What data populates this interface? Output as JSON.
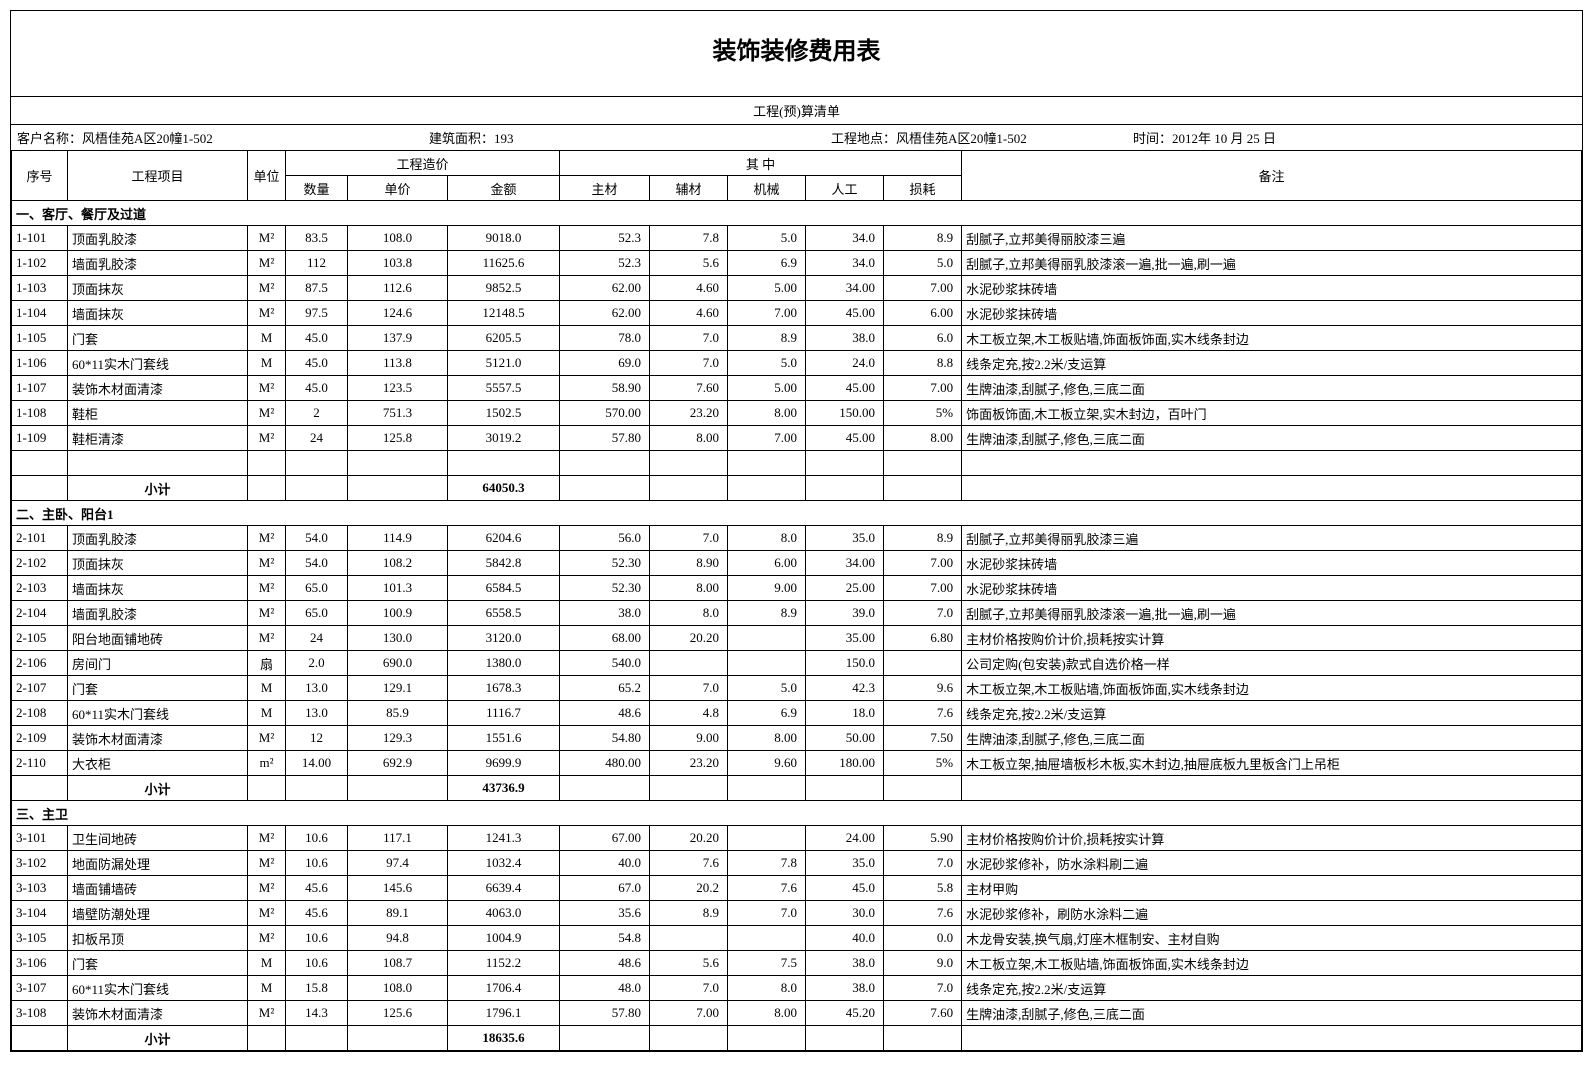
{
  "title": "装饰装修费用表",
  "subtitle": "工程(预)算清单",
  "meta": {
    "customer_label": "客户名称：",
    "customer": "风梧佳苑A区20幢1-502",
    "area_label": "建筑面积：",
    "area": "193",
    "location_label": "工程地点：",
    "location": "风梧佳苑A区20幢1-502",
    "date_label": "时间：",
    "date": "2012年 10 月 25 日"
  },
  "headers": {
    "seq": "序号",
    "item": "工程项目",
    "unit": "单位",
    "cost_group": "工程造价",
    "qty": "数量",
    "price": "单价",
    "amount": "金额",
    "breakdown_group": "其    中",
    "main": "主材",
    "aux": "辅材",
    "mach": "机械",
    "labor": "人工",
    "loss": "损耗",
    "note": "备注"
  },
  "sections": [
    {
      "heading": "一、客厅、餐厅及过道",
      "rows": [
        {
          "seq": "1-101",
          "item": "顶面乳胶漆",
          "unit": "M²",
          "qty": "83.5",
          "price": "108.0",
          "amount": "9018.0",
          "main": "52.3",
          "aux": "7.8",
          "mach": "5.0",
          "labor": "34.0",
          "loss": "8.9",
          "note": "刮腻子,立邦美得丽胶漆三遍"
        },
        {
          "seq": "1-102",
          "item": "墙面乳胶漆",
          "unit": "M²",
          "qty": "112",
          "price": "103.8",
          "amount": "11625.6",
          "main": "52.3",
          "aux": "5.6",
          "mach": "6.9",
          "labor": "34.0",
          "loss": "5.0",
          "note": "刮腻子,立邦美得丽乳胶漆滚一遍,批一遍,刷一遍"
        },
        {
          "seq": "1-103",
          "item": "顶面抹灰",
          "unit": "M²",
          "qty": "87.5",
          "price": "112.6",
          "amount": "9852.5",
          "main": "62.00",
          "aux": "4.60",
          "mach": "5.00",
          "labor": "34.00",
          "loss": "7.00",
          "note": "水泥砂浆抹砖墙"
        },
        {
          "seq": "1-104",
          "item": "墙面抹灰",
          "unit": "M²",
          "qty": "97.5",
          "price": "124.6",
          "amount": "12148.5",
          "main": "62.00",
          "aux": "4.60",
          "mach": "7.00",
          "labor": "45.00",
          "loss": "6.00",
          "note": "水泥砂浆抹砖墙"
        },
        {
          "seq": "1-105",
          "item": "门套",
          "unit": "M",
          "qty": "45.0",
          "price": "137.9",
          "amount": "6205.5",
          "main": "78.0",
          "aux": "7.0",
          "mach": "8.9",
          "labor": "38.0",
          "loss": "6.0",
          "note": "木工板立架,木工板贴墙,饰面板饰面,实木线条封边"
        },
        {
          "seq": "1-106",
          "item": "60*11实木门套线",
          "unit": "M",
          "qty": "45.0",
          "price": "113.8",
          "amount": "5121.0",
          "main": "69.0",
          "aux": "7.0",
          "mach": "5.0",
          "labor": "24.0",
          "loss": "8.8",
          "note": "线条定充,按2.2米/支运算"
        },
        {
          "seq": "1-107",
          "item": "装饰木材面清漆",
          "unit": "M²",
          "qty": "45.0",
          "price": "123.5",
          "amount": "5557.5",
          "main": "58.90",
          "aux": "7.60",
          "mach": "5.00",
          "labor": "45.00",
          "loss": "7.00",
          "note": "生牌油漆,刮腻子,修色,三底二面"
        },
        {
          "seq": "1-108",
          "item": "鞋柜",
          "unit": "M²",
          "qty": "2",
          "price": "751.3",
          "amount": "1502.5",
          "main": "570.00",
          "aux": "23.20",
          "mach": "8.00",
          "labor": "150.00",
          "loss": "5%",
          "note": "饰面板饰面,木工板立架,实木封边，百叶门"
        },
        {
          "seq": "1-109",
          "item": "鞋柜清漆",
          "unit": "M²",
          "qty": "24",
          "price": "125.8",
          "amount": "3019.2",
          "main": "57.80",
          "aux": "8.00",
          "mach": "7.00",
          "labor": "45.00",
          "loss": "8.00",
          "note": "生牌油漆,刮腻子,修色,三底二面"
        }
      ],
      "blank_after": true,
      "subtotal_label": "小计",
      "subtotal": "64050.3"
    },
    {
      "heading": "二、主卧、阳台1",
      "rows": [
        {
          "seq": "2-101",
          "item": "顶面乳胶漆",
          "unit": "M²",
          "qty": "54.0",
          "price": "114.9",
          "amount": "6204.6",
          "main": "56.0",
          "aux": "7.0",
          "mach": "8.0",
          "labor": "35.0",
          "loss": "8.9",
          "note": "刮腻子,立邦美得丽乳胶漆三遍"
        },
        {
          "seq": "2-102",
          "item": "顶面抹灰",
          "unit": "M²",
          "qty": "54.0",
          "price": "108.2",
          "amount": "5842.8",
          "main": "52.30",
          "aux": "8.90",
          "mach": "6.00",
          "labor": "34.00",
          "loss": "7.00",
          "note": "水泥砂浆抹砖墙"
        },
        {
          "seq": "2-103",
          "item": "墙面抹灰",
          "unit": "M²",
          "qty": "65.0",
          "price": "101.3",
          "amount": "6584.5",
          "main": "52.30",
          "aux": "8.00",
          "mach": "9.00",
          "labor": "25.00",
          "loss": "7.00",
          "note": "水泥砂浆抹砖墙"
        },
        {
          "seq": "2-104",
          "item": "墙面乳胶漆",
          "unit": "M²",
          "qty": "65.0",
          "price": "100.9",
          "amount": "6558.5",
          "main": "38.0",
          "aux": "8.0",
          "mach": "8.9",
          "labor": "39.0",
          "loss": "7.0",
          "note": "刮腻子,立邦美得丽乳胶漆滚一遍,批一遍,刷一遍"
        },
        {
          "seq": "2-105",
          "item": "阳台地面铺地砖",
          "unit": "M²",
          "qty": "24",
          "price": "130.0",
          "amount": "3120.0",
          "main": "68.00",
          "aux": "20.20",
          "mach": "",
          "labor": "35.00",
          "loss": "6.80",
          "note": "主材价格按购价计价,损耗按实计算"
        },
        {
          "seq": "2-106",
          "item": "房间门",
          "unit": "扇",
          "qty": "2.0",
          "price": "690.0",
          "amount": "1380.0",
          "main": "540.0",
          "aux": "",
          "mach": "",
          "labor": "150.0",
          "loss": "",
          "note": "公司定购(包安装)款式自选价格一样"
        },
        {
          "seq": "2-107",
          "item": "门套",
          "unit": "M",
          "qty": "13.0",
          "price": "129.1",
          "amount": "1678.3",
          "main": "65.2",
          "aux": "7.0",
          "mach": "5.0",
          "labor": "42.3",
          "loss": "9.6",
          "note": "木工板立架,木工板贴墙,饰面板饰面,实木线条封边"
        },
        {
          "seq": "2-108",
          "item": "60*11实木门套线",
          "unit": "M",
          "qty": "13.0",
          "price": "85.9",
          "amount": "1116.7",
          "main": "48.6",
          "aux": "4.8",
          "mach": "6.9",
          "labor": "18.0",
          "loss": "7.6",
          "note": "线条定充,按2.2米/支运算"
        },
        {
          "seq": "2-109",
          "item": "装饰木材面清漆",
          "unit": "M²",
          "qty": "12",
          "price": "129.3",
          "amount": "1551.6",
          "main": "54.80",
          "aux": "9.00",
          "mach": "8.00",
          "labor": "50.00",
          "loss": "7.50",
          "note": "生牌油漆,刮腻子,修色,三底二面"
        },
        {
          "seq": "2-110",
          "item": "大衣柜",
          "unit": "m²",
          "qty": "14.00",
          "price": "692.9",
          "amount": "9699.9",
          "main": "480.00",
          "aux": "23.20",
          "mach": "9.60",
          "labor": "180.00",
          "loss": "5%",
          "note": "木工板立架,抽屉墙板杉木板,实木封边,抽屉底板九里板含门上吊柜"
        }
      ],
      "blank_after": false,
      "subtotal_label": "小计",
      "subtotal": "43736.9"
    },
    {
      "heading": "三、主卫",
      "rows": [
        {
          "seq": "3-101",
          "item": "卫生间地砖",
          "unit": "M²",
          "qty": "10.6",
          "price": "117.1",
          "amount": "1241.3",
          "main": "67.00",
          "aux": "20.20",
          "mach": "",
          "labor": "24.00",
          "loss": "5.90",
          "note": "主材价格按购价计价,损耗按实计算"
        },
        {
          "seq": "3-102",
          "item": "地面防漏处理",
          "unit": "M²",
          "qty": "10.6",
          "price": "97.4",
          "amount": "1032.4",
          "main": "40.0",
          "aux": "7.6",
          "mach": "7.8",
          "labor": "35.0",
          "loss": "7.0",
          "note": "水泥砂浆修补，防水涂料刷二遍"
        },
        {
          "seq": "3-103",
          "item": "墙面铺墙砖",
          "unit": "M²",
          "qty": "45.6",
          "price": "145.6",
          "amount": "6639.4",
          "main": "67.0",
          "aux": "20.2",
          "mach": "7.6",
          "labor": "45.0",
          "loss": "5.8",
          "note": "主材甲购"
        },
        {
          "seq": "3-104",
          "item": "墙壁防潮处理",
          "unit": "M²",
          "qty": "45.6",
          "price": "89.1",
          "amount": "4063.0",
          "main": "35.6",
          "aux": "8.9",
          "mach": "7.0",
          "labor": "30.0",
          "loss": "7.6",
          "note": "水泥砂浆修补，刷防水涂料二遍"
        },
        {
          "seq": "3-105",
          "item": "扣板吊顶",
          "unit": "M²",
          "qty": "10.6",
          "price": "94.8",
          "amount": "1004.9",
          "main": "54.8",
          "aux": "",
          "mach": "",
          "labor": "40.0",
          "loss": "0.0",
          "note": "木龙骨安装,换气扇,灯座木框制安、主材自购"
        },
        {
          "seq": "3-106",
          "item": "门套",
          "unit": "M",
          "qty": "10.6",
          "price": "108.7",
          "amount": "1152.2",
          "main": "48.6",
          "aux": "5.6",
          "mach": "7.5",
          "labor": "38.0",
          "loss": "9.0",
          "note": "木工板立架,木工板贴墙,饰面板饰面,实木线条封边"
        },
        {
          "seq": "3-107",
          "item": "60*11实木门套线",
          "unit": "M",
          "qty": "15.8",
          "price": "108.0",
          "amount": "1706.4",
          "main": "48.0",
          "aux": "7.0",
          "mach": "8.0",
          "labor": "38.0",
          "loss": "7.0",
          "note": "线条定充,按2.2米/支运算"
        },
        {
          "seq": "3-108",
          "item": "装饰木材面清漆",
          "unit": "M²",
          "qty": "14.3",
          "price": "125.6",
          "amount": "1796.1",
          "main": "57.80",
          "aux": "7.00",
          "mach": "8.00",
          "labor": "45.20",
          "loss": "7.60",
          "note": "生牌油漆,刮腻子,修色,三底二面"
        }
      ],
      "blank_after": false,
      "subtotal_label": "小计",
      "subtotal": "18635.6"
    }
  ],
  "style": {
    "title_fontsize": 24,
    "body_fontsize": 13,
    "border_color": "#000000",
    "background_color": "#ffffff",
    "text_color": "#000000",
    "col_widths": {
      "seq": 56,
      "item": 180,
      "unit": 38,
      "qty": 62,
      "price": 100,
      "amt": 112,
      "main": 90,
      "aux": 78,
      "mach": 78,
      "labor": 78,
      "loss": 78
    }
  }
}
